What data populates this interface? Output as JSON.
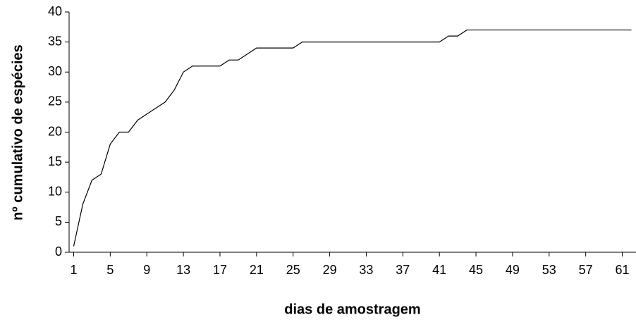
{
  "chart_data": {
    "type": "line",
    "x_label": "dias de amostragem",
    "y_label": "nº cumulativo de espécies",
    "x": [
      1,
      2,
      3,
      4,
      5,
      6,
      7,
      8,
      9,
      10,
      11,
      12,
      13,
      14,
      15,
      16,
      17,
      18,
      19,
      20,
      21,
      22,
      23,
      24,
      25,
      26,
      27,
      28,
      29,
      30,
      31,
      32,
      33,
      34,
      35,
      36,
      37,
      38,
      39,
      40,
      41,
      42,
      43,
      44,
      45,
      46,
      47,
      48,
      49,
      50,
      51,
      52,
      53,
      54,
      55,
      56,
      57,
      58,
      59,
      60,
      61,
      62
    ],
    "series": [
      {
        "color": "#000000",
        "values": [
          1,
          8,
          12,
          13,
          18,
          20,
          20,
          22,
          23,
          24,
          25,
          27,
          30,
          31,
          31,
          31,
          31,
          32,
          32,
          33,
          34,
          34,
          34,
          34,
          34,
          35,
          35,
          35,
          35,
          35,
          35,
          35,
          35,
          35,
          35,
          35,
          35,
          35,
          35,
          35,
          35,
          36,
          36,
          37,
          37,
          37,
          37,
          37,
          37,
          37,
          37,
          37,
          37,
          37,
          37,
          37,
          37,
          37,
          37,
          37,
          37,
          37
        ]
      }
    ],
    "xlim": [
      0.5,
      62.5
    ],
    "xticks": [
      1,
      5,
      9,
      13,
      17,
      21,
      25,
      29,
      33,
      37,
      41,
      45,
      49,
      53,
      57,
      61
    ],
    "ylim": [
      0,
      40
    ],
    "yticks": [
      0,
      5,
      10,
      15,
      20,
      25,
      30,
      35,
      40
    ]
  }
}
